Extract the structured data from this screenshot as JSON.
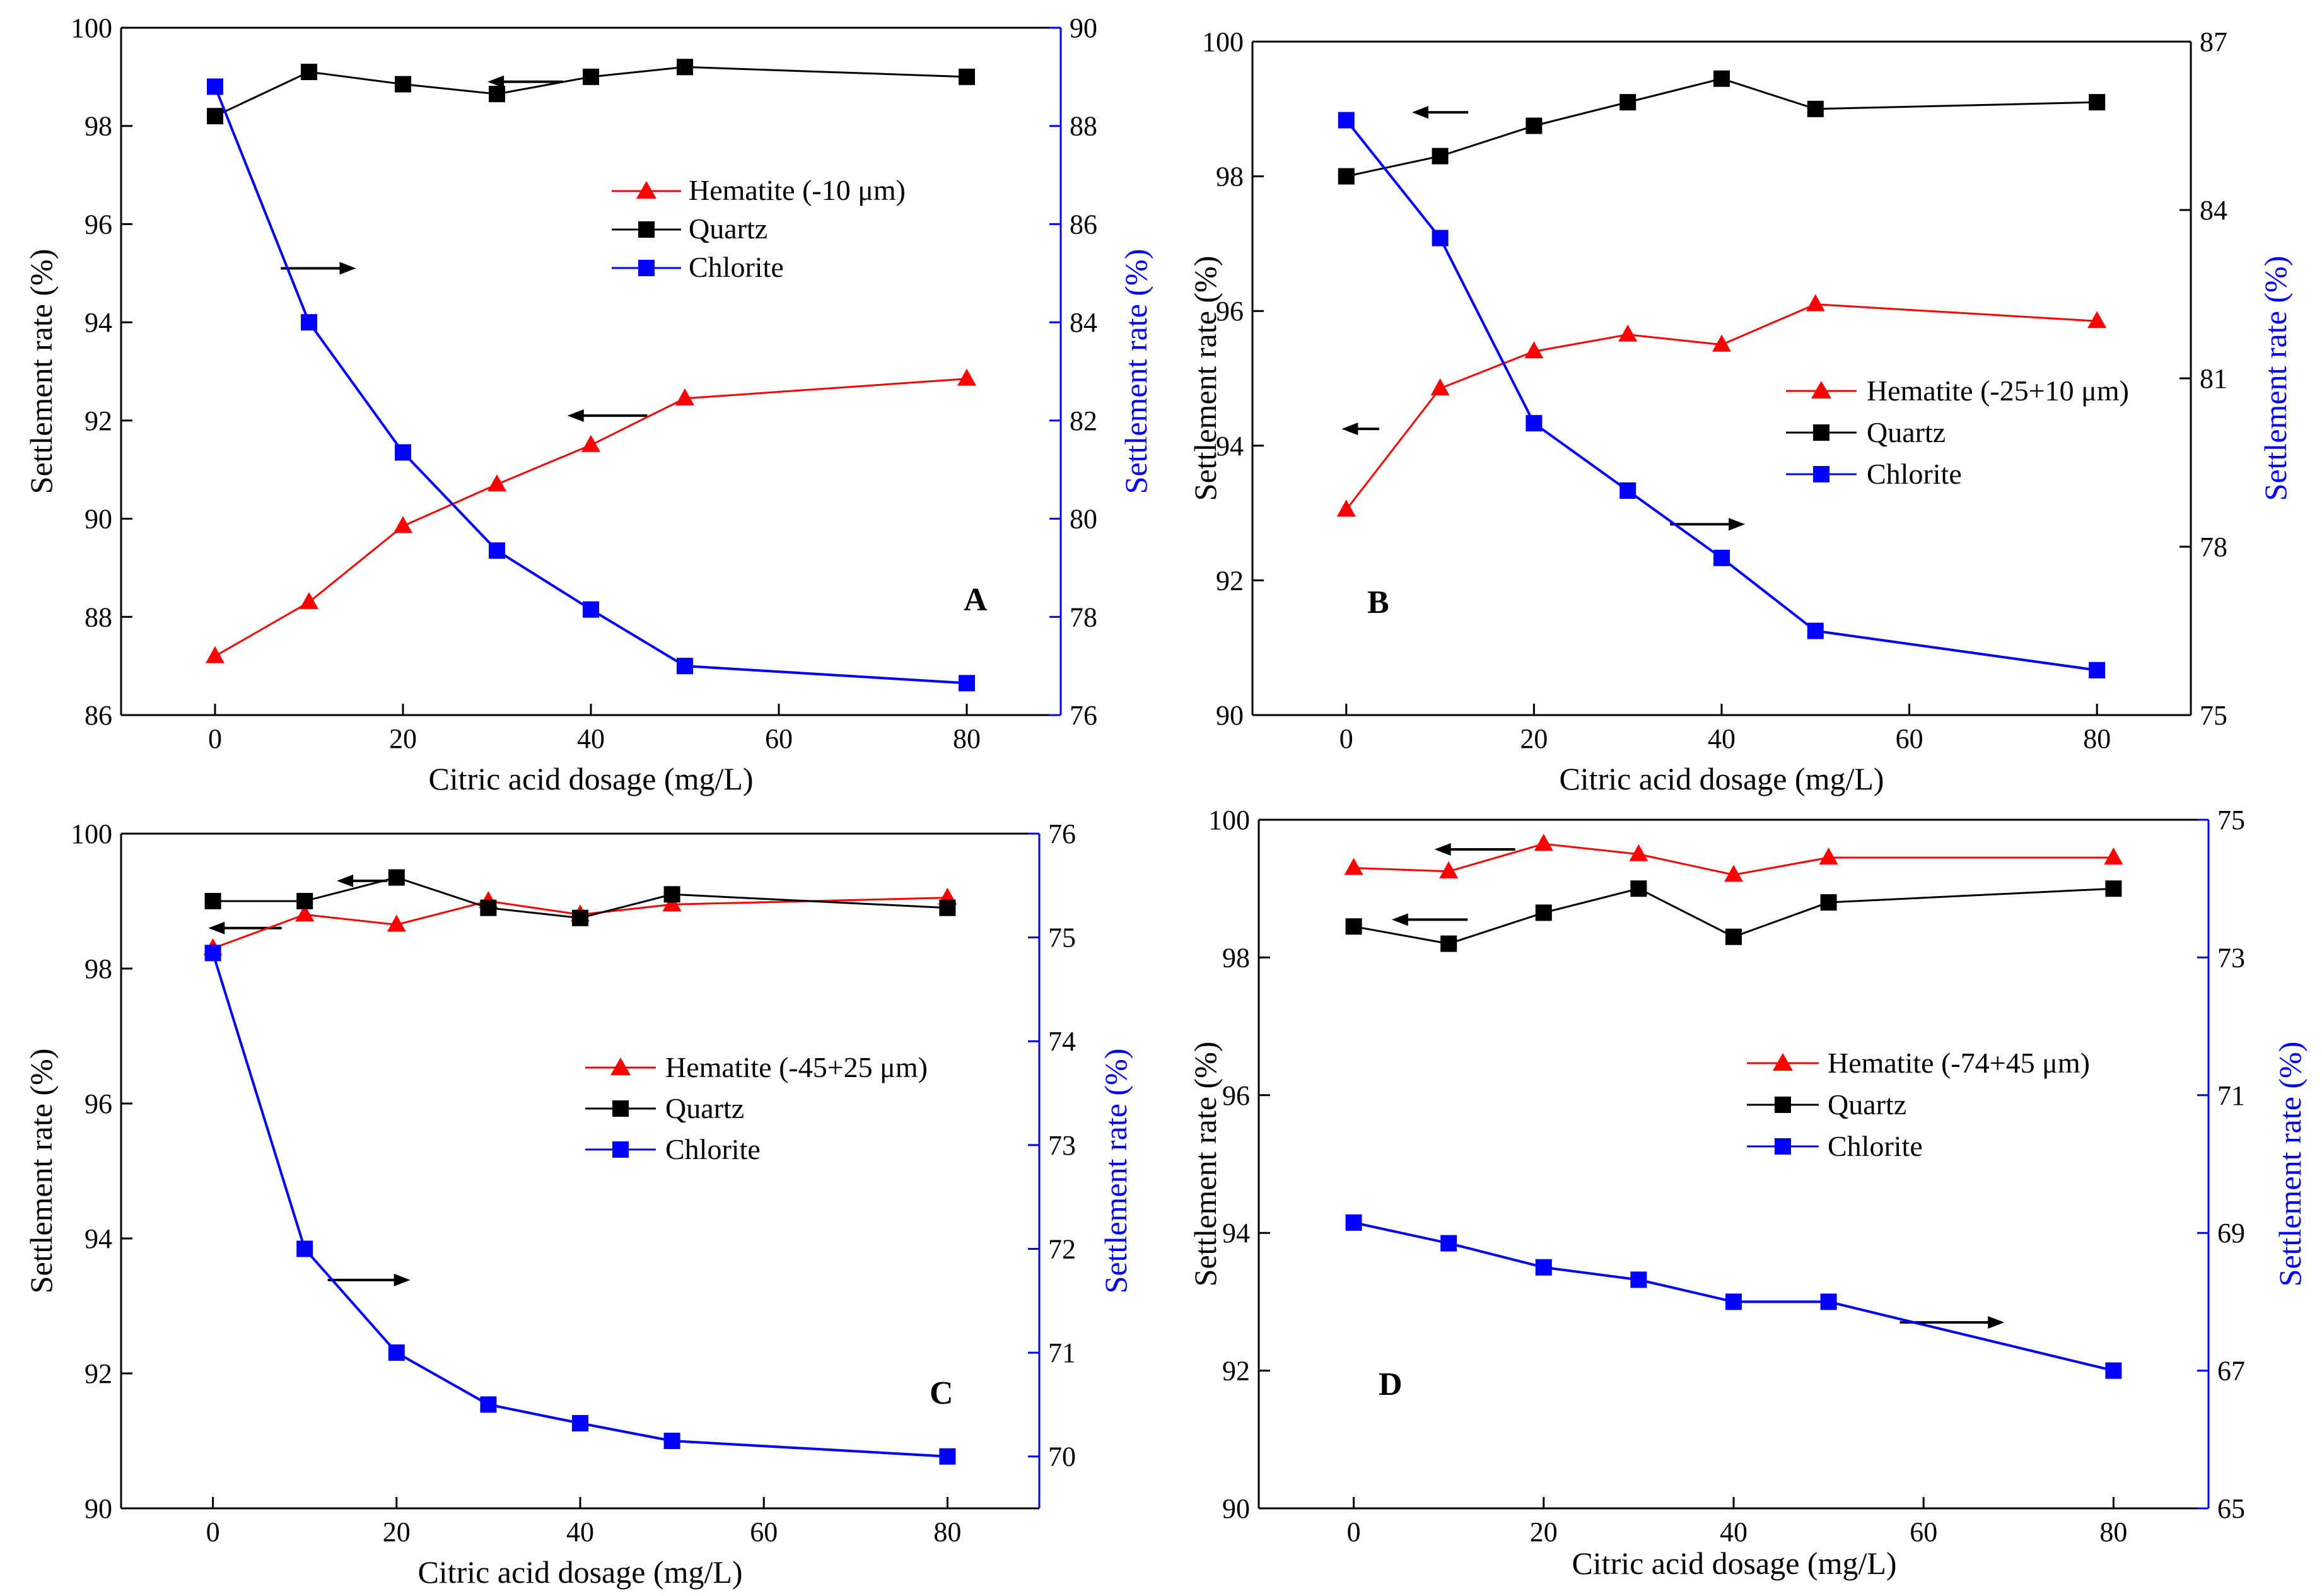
{
  "panels": [
    {
      "panel_label": "A",
      "xlabel": "Citric acid dosage (mg/L)",
      "ylabel": "Settlement rate (%)",
      "y2label": "Settlement rate (%)",
      "x_ticks": [
        0,
        20,
        40,
        60,
        80
      ],
      "y_ticks": [
        86,
        88,
        90,
        92,
        94,
        96,
        98,
        100
      ],
      "y2_ticks": [
        76,
        78,
        80,
        82,
        84,
        86,
        88,
        90
      ],
      "legend": {
        "hematite": "Hematite (-10 μm)",
        "quartz": "Quartz",
        "chlorite": "Chlorite"
      }
    },
    {
      "panel_label": "B",
      "xlabel": "Citric acid dosage (mg/L)",
      "ylabel": "Settlement rate (%)",
      "y2label": "Settlement rate (%)",
      "x_ticks": [
        0,
        20,
        40,
        60,
        80
      ],
      "y_ticks": [
        90,
        92,
        94,
        96,
        98,
        100
      ],
      "y2_ticks": [
        75,
        78,
        81,
        84,
        87
      ],
      "legend": {
        "hematite": "Hematite (-25+10 μm)",
        "quartz": "Quartz",
        "chlorite": "Chlorite"
      }
    },
    {
      "panel_label": "C",
      "xlabel": "Citric acid dosage (mg/L)",
      "ylabel": "Settlement rate (%)",
      "y2label": "Settlement rate (%)",
      "x_ticks": [
        0,
        20,
        40,
        60,
        80
      ],
      "y_ticks": [
        90,
        92,
        94,
        96,
        98,
        100
      ],
      "y2_ticks": [
        70,
        71,
        72,
        73,
        74,
        75,
        76
      ],
      "legend": {
        "hematite": "Hematite (-45+25 μm)",
        "quartz": "Quartz",
        "chlorite": "Chlorite"
      }
    },
    {
      "panel_label": "D",
      "xlabel": "Citric acid dosage (mg/L)",
      "ylabel": "Settlement rate (%)",
      "y2label": "Settlement rate (%)",
      "x_ticks": [
        0,
        20,
        40,
        60,
        80
      ],
      "y_ticks": [
        90,
        92,
        94,
        96,
        98,
        100
      ],
      "y2_ticks": [
        65,
        67,
        69,
        71,
        73,
        75
      ],
      "legend": {
        "hematite": "Hematite (-74+45 μm)",
        "quartz": "Quartz",
        "chlorite": "Chlorite"
      }
    }
  ],
  "colors": {
    "hematite": "#ff0000",
    "quartz": "#000000",
    "chlorite": "#0000ff",
    "axis": "#000000",
    "right_axis": "#0000ff"
  },
  "chart_data": [
    {
      "type": "line",
      "title": "A",
      "xlabel": "Citric acid dosage (mg/L)",
      "ylabel": "Settlement rate (%)",
      "y2label": "Settlement rate (%)",
      "x": [
        0,
        10,
        20,
        30,
        40,
        50,
        80
      ],
      "xlim": [
        -10,
        90
      ],
      "ylim": [
        86,
        100
      ],
      "y2lim": [
        76,
        90
      ],
      "series": [
        {
          "name": "Hematite (-10 μm)",
          "axis": "left",
          "marker": "triangle",
          "values": [
            87.2,
            88.3,
            89.85,
            90.7,
            91.5,
            92.45,
            92.85
          ]
        },
        {
          "name": "Quartz",
          "axis": "left",
          "marker": "square",
          "values": [
            98.2,
            99.1,
            98.85,
            98.65,
            99.0,
            99.2,
            99.0
          ]
        },
        {
          "name": "Chlorite",
          "axis": "right",
          "marker": "square",
          "values": [
            88.8,
            84.0,
            81.35,
            79.35,
            78.15,
            77.0,
            76.65
          ]
        }
      ],
      "arrows": [
        {
          "axis": "left",
          "x_from": 37,
          "x_to": 29,
          "y": 98.9
        },
        {
          "axis": "right",
          "x_from": 7,
          "x_to": 15,
          "y": 85.1
        },
        {
          "axis": "left",
          "x_from": 46,
          "x_to": 37.5,
          "y": 92.1
        }
      ]
    },
    {
      "type": "line",
      "title": "B",
      "xlabel": "Citric acid dosage (mg/L)",
      "ylabel": "Settlement rate (%)",
      "y2label": "Settlement rate (%)",
      "x": [
        0,
        10,
        20,
        30,
        40,
        50,
        80
      ],
      "xlim": [
        -10,
        90
      ],
      "ylim": [
        90,
        100
      ],
      "y2lim": [
        75,
        87
      ],
      "series": [
        {
          "name": "Hematite (-25+10 μm)",
          "axis": "left",
          "marker": "triangle",
          "values": [
            93.05,
            94.85,
            95.4,
            95.65,
            95.5,
            96.1,
            95.85
          ]
        },
        {
          "name": "Quartz",
          "axis": "left",
          "marker": "square",
          "values": [
            98.0,
            98.3,
            98.75,
            99.1,
            99.45,
            99.0,
            99.1
          ]
        },
        {
          "name": "Chlorite",
          "axis": "right",
          "marker": "square",
          "values": [
            85.6,
            83.5,
            80.2,
            79.0,
            77.8,
            76.5,
            75.8
          ]
        }
      ],
      "arrows": [
        {
          "axis": "left",
          "x_from": 13,
          "x_to": 7,
          "y": 98.95
        },
        {
          "axis": "left",
          "x_from": 3.5,
          "x_to": -0.5,
          "y": 94.25
        },
        {
          "axis": "right",
          "x_from": 34.5,
          "x_to": 42.5,
          "y": 78.4
        }
      ]
    },
    {
      "type": "line",
      "title": "C",
      "xlabel": "Citric acid dosage (mg/L)",
      "ylabel": "Settlement rate (%)",
      "y2label": "Settlement rate (%)",
      "x": [
        0,
        10,
        20,
        30,
        40,
        50,
        80
      ],
      "xlim": [
        -10,
        90
      ],
      "ylim": [
        90,
        100
      ],
      "y2lim": [
        69.5,
        76
      ],
      "series": [
        {
          "name": "Hematite (-45+25 μm)",
          "axis": "left",
          "marker": "triangle",
          "values": [
            98.3,
            98.8,
            98.65,
            99.0,
            98.8,
            98.95,
            99.05
          ]
        },
        {
          "name": "Quartz",
          "axis": "left",
          "marker": "square",
          "values": [
            99.0,
            99.0,
            99.35,
            98.9,
            98.75,
            99.1,
            98.9
          ]
        },
        {
          "name": "Chlorite",
          "axis": "right",
          "marker": "square",
          "values": [
            74.85,
            72.0,
            71.0,
            70.5,
            70.32,
            70.15,
            70.0
          ]
        }
      ],
      "arrows": [
        {
          "axis": "left",
          "x_from": 19,
          "x_to": 13.5,
          "y": 99.3
        },
        {
          "axis": "left",
          "x_from": 7.5,
          "x_to": -0.5,
          "y": 98.6
        },
        {
          "axis": "right",
          "x_from": 12.5,
          "x_to": 21.5,
          "y": 71.7
        }
      ]
    },
    {
      "type": "line",
      "title": "D",
      "xlabel": "Citric acid dosage (mg/L)",
      "ylabel": "Settlement rate (%)",
      "y2label": "Settlement rate (%)",
      "x": [
        0,
        10,
        20,
        30,
        40,
        50,
        80
      ],
      "xlim": [
        -10,
        90
      ],
      "ylim": [
        90,
        100
      ],
      "y2lim": [
        65,
        75
      ],
      "series": [
        {
          "name": "Hematite (-74+45 μm)",
          "axis": "left",
          "marker": "triangle",
          "values": [
            99.3,
            99.25,
            99.65,
            99.5,
            99.2,
            99.45,
            99.45
          ]
        },
        {
          "name": "Quartz",
          "axis": "left",
          "marker": "square",
          "values": [
            98.45,
            98.2,
            98.65,
            99.0,
            98.3,
            98.8,
            99.0
          ]
        },
        {
          "name": "Chlorite",
          "axis": "right",
          "marker": "square",
          "values": [
            69.15,
            68.85,
            68.5,
            68.32,
            68.0,
            68.0,
            67.0
          ]
        }
      ],
      "arrows": [
        {
          "axis": "left",
          "x_from": 17,
          "x_to": 8.5,
          "y": 99.57
        },
        {
          "axis": "left",
          "x_from": 12,
          "x_to": 4,
          "y": 98.55
        },
        {
          "axis": "right",
          "x_from": 57.5,
          "x_to": 68.5,
          "y": 67.7
        }
      ]
    }
  ]
}
